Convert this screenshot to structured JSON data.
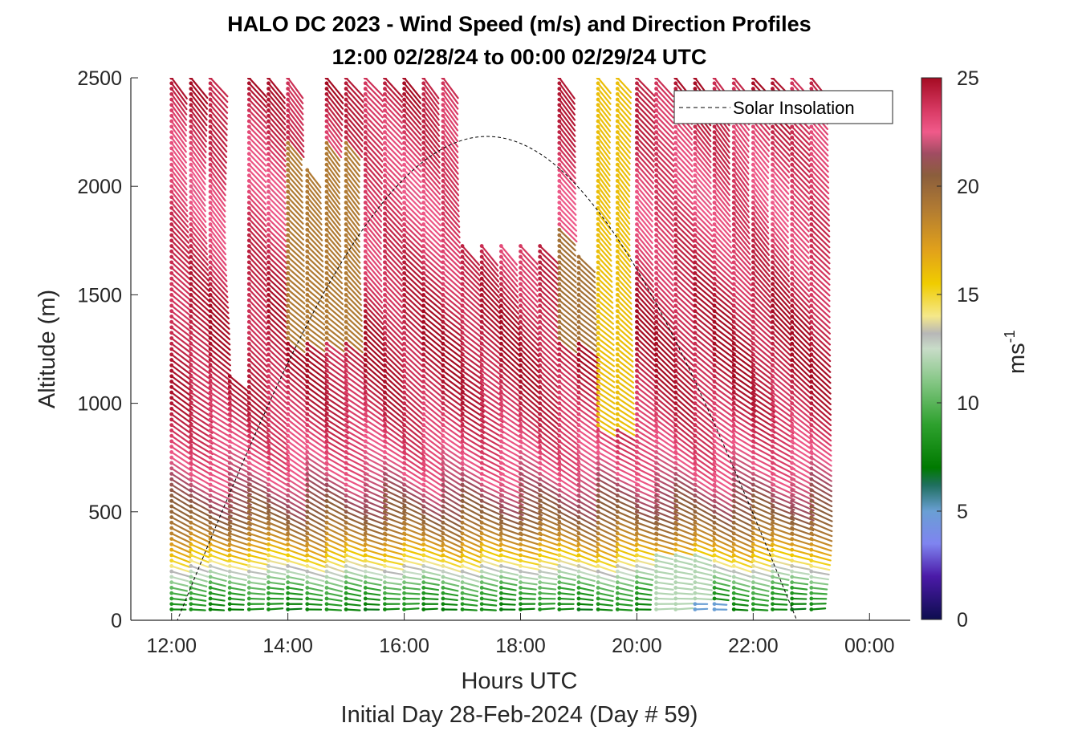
{
  "chart_data": {
    "type": "barb-profile",
    "title_line1": "HALO DC 2023 - Wind Speed (m/s) and Direction Profiles",
    "title_line2": "12:00 02/28/24 to 00:00 02/29/24  UTC",
    "xlabel": "Hours UTC",
    "xlabel2": "Initial Day 28-Feb-2024 (Day # 59)",
    "ylabel": "Altitude (m)",
    "x_ticks": [
      "12:00",
      "14:00",
      "16:00",
      "18:00",
      "20:00",
      "22:00",
      "00:00"
    ],
    "x_tick_hours": [
      12,
      14,
      16,
      18,
      20,
      22,
      24
    ],
    "xlim_hours": [
      11.3,
      24.7
    ],
    "y_ticks": [
      0,
      500,
      1000,
      1500,
      2000,
      2500
    ],
    "ylim": [
      0,
      2500
    ],
    "colorbar": {
      "label": "ms",
      "label_superscript": "-1",
      "ticks": [
        0,
        5,
        10,
        15,
        20,
        25
      ],
      "range": [
        0,
        25
      ],
      "stops": [
        {
          "v": 0,
          "c": "#0d0d4f"
        },
        {
          "v": 2,
          "c": "#4b1aa8"
        },
        {
          "v": 3.5,
          "c": "#7f84f0"
        },
        {
          "v": 5,
          "c": "#6a9fd4"
        },
        {
          "v": 6.2,
          "c": "#1f6f5f"
        },
        {
          "v": 7,
          "c": "#007a00"
        },
        {
          "v": 9,
          "c": "#2ea12e"
        },
        {
          "v": 11,
          "c": "#86c786"
        },
        {
          "v": 12.5,
          "c": "#c8dcc8"
        },
        {
          "v": 13.2,
          "c": "#b7b7b7"
        },
        {
          "v": 14,
          "c": "#f5e88a"
        },
        {
          "v": 15.5,
          "c": "#f0cc00"
        },
        {
          "v": 17,
          "c": "#e2a21a"
        },
        {
          "v": 19,
          "c": "#b07a33"
        },
        {
          "v": 20.5,
          "c": "#8b5e3c"
        },
        {
          "v": 21.5,
          "c": "#a04c62"
        },
        {
          "v": 22.5,
          "c": "#f05a8a"
        },
        {
          "v": 23.5,
          "c": "#d83a64"
        },
        {
          "v": 25,
          "c": "#a50b22"
        }
      ]
    },
    "legend": {
      "label": "Solar Insolation",
      "placement": "top-right",
      "style": "dashed"
    },
    "solar_insolation": {
      "rise_hour": 12.1,
      "set_hour": 22.75,
      "peak_altitude_m": 2230,
      "peak_hour": 17.425
    },
    "barb_times_hours": [
      12.0,
      12.333,
      12.667,
      13.0,
      13.333,
      13.667,
      14.0,
      14.333,
      14.667,
      15.0,
      15.333,
      15.667,
      16.0,
      16.333,
      16.667,
      17.0,
      17.333,
      17.667,
      18.0,
      18.333,
      18.667,
      19.0,
      19.333,
      19.667,
      20.0,
      20.333,
      20.667,
      21.0,
      21.333,
      21.667,
      22.0,
      22.333,
      22.667,
      23.0
    ],
    "altitudes_m": [
      50,
      100,
      150,
      200,
      250,
      300,
      350,
      400,
      500,
      600,
      700,
      800,
      900,
      1000,
      1200,
      1400,
      1600,
      1800,
      2000,
      2200,
      2400,
      2500
    ],
    "speed_profile_ms": [
      7.5,
      8.5,
      9.5,
      11.5,
      13.5,
      15.5,
      17,
      18.5,
      20.5,
      21.5,
      22.5,
      23,
      23.5,
      24,
      24.5,
      24.5,
      24,
      23.5,
      23,
      23.5,
      24,
      24.5
    ],
    "speed_anomaly_ms": [
      {
        "t_start": 13.9,
        "t_end": 15.1,
        "alt_min": 1300,
        "alt_max": 2200,
        "speed": 19
      },
      {
        "t_start": 18.6,
        "t_end": 19.1,
        "alt_min": 1300,
        "alt_max": 1800,
        "speed": 19.5
      },
      {
        "t_start": 19.25,
        "t_end": 19.7,
        "alt_min": 900,
        "alt_max": 2500,
        "speed": 16
      },
      {
        "t_start": 20.3,
        "t_end": 21.1,
        "alt_min": 0,
        "alt_max": 300,
        "speed": 12
      },
      {
        "t_start": 21.0,
        "t_end": 21.6,
        "alt_min": 0,
        "alt_max": 80,
        "speed": 5
      }
    ],
    "data_gaps": [
      {
        "t_start": 12.8,
        "t_end": 13.2,
        "alt_min": 1150,
        "alt_max": 2500
      },
      {
        "t_start": 14.1,
        "t_end": 14.6,
        "alt_min": 2100,
        "alt_max": 2500
      },
      {
        "t_start": 16.9,
        "t_end": 18.6,
        "alt_min": 1750,
        "alt_max": 2500
      },
      {
        "t_start": 18.7,
        "t_end": 19.3,
        "alt_min": 1700,
        "alt_max": 2500
      }
    ],
    "direction_profile_deg": [
      270,
      275,
      280,
      282,
      285,
      288,
      290,
      292,
      295,
      298,
      300,
      302,
      305,
      307,
      310,
      312,
      315,
      318,
      320,
      320,
      320,
      320
    ]
  }
}
